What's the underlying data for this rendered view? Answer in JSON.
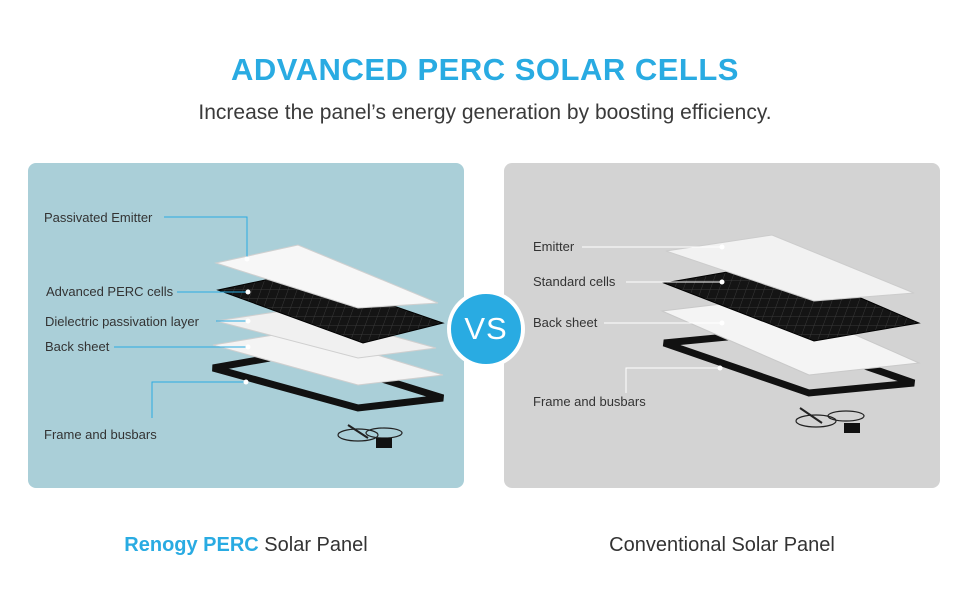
{
  "header": {
    "title": "ADVANCED PERC SOLAR CELLS",
    "subtitle": "Increase the panel’s energy generation by boosting efficiency."
  },
  "left_panel": {
    "labels": [
      "Passivated Emitter",
      "Advanced PERC cells",
      "Dielectric passivation layer",
      "Back sheet",
      "Frame and busbars"
    ],
    "caption_brand": "Renogy PERC",
    "caption_rest": " Solar Panel"
  },
  "vs_badge": "VS",
  "right_panel": {
    "labels": [
      "Emitter",
      "Standard cells",
      "Back sheet",
      "Frame and busbars"
    ],
    "caption": "Conventional Solar Panel"
  },
  "colors": {
    "accent": "#29abe2",
    "left_panel_bg": "#aacfd8",
    "right_panel_bg": "#d3d3d3"
  }
}
